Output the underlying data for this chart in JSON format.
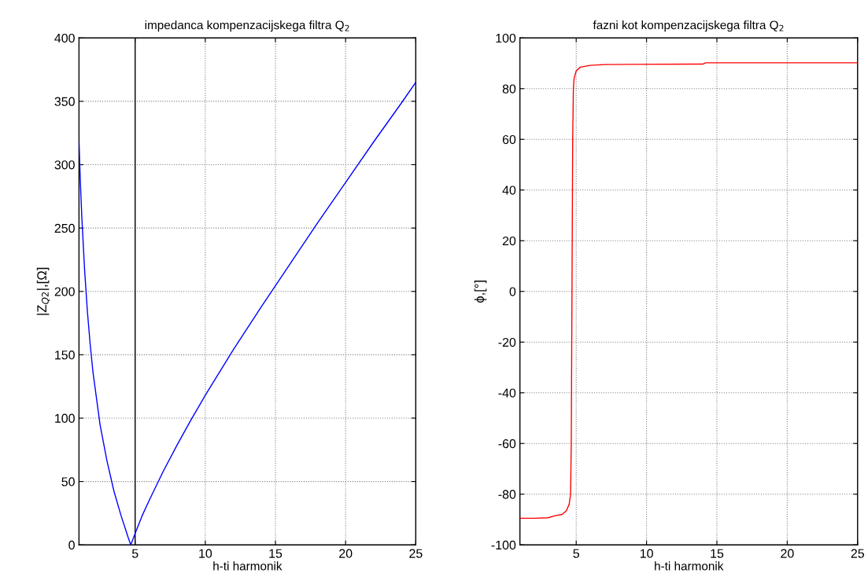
{
  "chart_data": [
    {
      "type": "line",
      "title": "impedanca kompenzacijskega filtra Q$_{2}$",
      "xlabel": "h-ti harmonik",
      "ylabel": "|Z$_{Q2}$|,[Ω]",
      "xlim": [
        1,
        25
      ],
      "ylim": [
        0,
        400
      ],
      "xticks": [
        5,
        10,
        15,
        20,
        25
      ],
      "yticks": [
        0,
        50,
        100,
        150,
        200,
        250,
        300,
        350,
        400
      ],
      "grid": true,
      "legend": false,
      "marker": "none",
      "line_style": "solid",
      "ref_lines": [
        {
          "axis": "x",
          "value": 5,
          "color": "#000000",
          "line_style": "solid"
        }
      ],
      "series": [
        {
          "color": "#0000ff",
          "x": [
            1,
            1.1,
            1.2,
            1.4,
            1.6,
            1.8,
            2,
            2.5,
            3,
            3.5,
            4,
            4.5,
            4.69,
            5,
            5.5,
            6,
            7,
            8,
            9,
            10,
            12,
            14,
            16,
            18,
            20,
            22,
            24,
            25
          ],
          "values": [
            318,
            286,
            259,
            217,
            184,
            158,
            136,
            95,
            66,
            42,
            23,
            6,
            0,
            9,
            23,
            35,
            58,
            79,
            99,
            118,
            154,
            188,
            221,
            254,
            286,
            318,
            349,
            365
          ]
        }
      ]
    },
    {
      "type": "line",
      "title": "fazni kot kompenzacijskega filtra Q$_{2}$",
      "xlabel": "h-ti harmonik",
      "ylabel": "ϕ,[°]",
      "xlim": [
        1,
        25
      ],
      "ylim": [
        -100,
        100
      ],
      "xticks": [
        5,
        10,
        15,
        20,
        25
      ],
      "yticks": [
        -100,
        -80,
        -60,
        -40,
        -20,
        0,
        20,
        40,
        60,
        80,
        100
      ],
      "grid": true,
      "legend": false,
      "marker": "none",
      "line_style": "solid",
      "series": [
        {
          "color": "#ff0000",
          "x": [
            1,
            2,
            3,
            3.5,
            4,
            4.3,
            4.5,
            4.6,
            4.65,
            4.7,
            4.75,
            4.8,
            4.85,
            5,
            5.3,
            6,
            7,
            9,
            14,
            14.2,
            25
          ],
          "values": [
            -89.5,
            -89.5,
            -89.3,
            -88.5,
            -88,
            -86.5,
            -84,
            -80,
            -60,
            0,
            60,
            80,
            84,
            87,
            88.5,
            89.2,
            89.5,
            89.6,
            89.7,
            90.2,
            90.2
          ]
        }
      ]
    }
  ]
}
